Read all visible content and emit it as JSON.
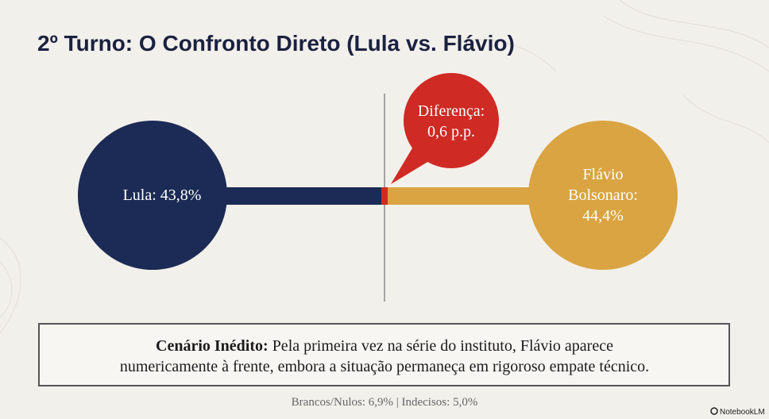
{
  "title": "2º Turno: O Confronto Direto (Lula vs. Flávio)",
  "left": {
    "label": "Lula: 43,8%"
  },
  "right": {
    "label_lines": [
      "Flávio",
      "Bolsonaro:",
      "44,4%"
    ]
  },
  "callout": {
    "lines": [
      "Diferença:",
      "0,6 p.p."
    ]
  },
  "note": {
    "heading": "Cenário Inédito:",
    "text_lines": [
      "Pela primeira vez na série do instituto, Flávio aparece",
      "numericamente à frente, embora a situação permaneça em rigoroso empate técnico."
    ]
  },
  "footer": "Brancos/Nulos: 6,9% | Indecisos: 5,0%",
  "brand": "NotebookLM"
}
